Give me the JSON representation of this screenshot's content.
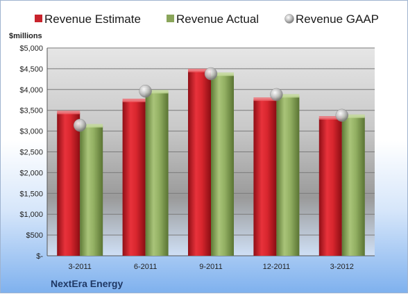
{
  "chart_data": {
    "type": "bar",
    "categories": [
      "3-2011",
      "6-2011",
      "9-2011",
      "12-2011",
      "3-2012"
    ],
    "series": [
      {
        "name": "Revenue Estimate",
        "kind": "bar",
        "values": [
          3440,
          3730,
          4450,
          3760,
          3310
        ]
      },
      {
        "name": "Revenue Actual",
        "kind": "bar",
        "values": [
          3120,
          3940,
          4360,
          3840,
          3350
        ]
      },
      {
        "name": "Revenue GAAP",
        "kind": "marker",
        "values": [
          3140,
          3960,
          4380,
          3880,
          3380
        ]
      }
    ],
    "ylabel": "$millions",
    "ylim": [
      0,
      5000
    ],
    "yticks": [
      0,
      500,
      1000,
      1500,
      2000,
      2500,
      3000,
      3500,
      4000,
      4500,
      5000
    ],
    "ytick_labels": [
      "$-",
      "$500",
      "$1,000",
      "$1,500",
      "$2,000",
      "$2,500",
      "$3,000",
      "$3,500",
      "$4,000",
      "$4,500",
      "$5,000"
    ],
    "grid": true,
    "legend": "top",
    "company": "NextEra Energy",
    "colors": {
      "estimate": "#c8232c",
      "actual": "#8aa55a",
      "gaap": "#b8b8b8",
      "text_company": "#1f3864"
    }
  }
}
